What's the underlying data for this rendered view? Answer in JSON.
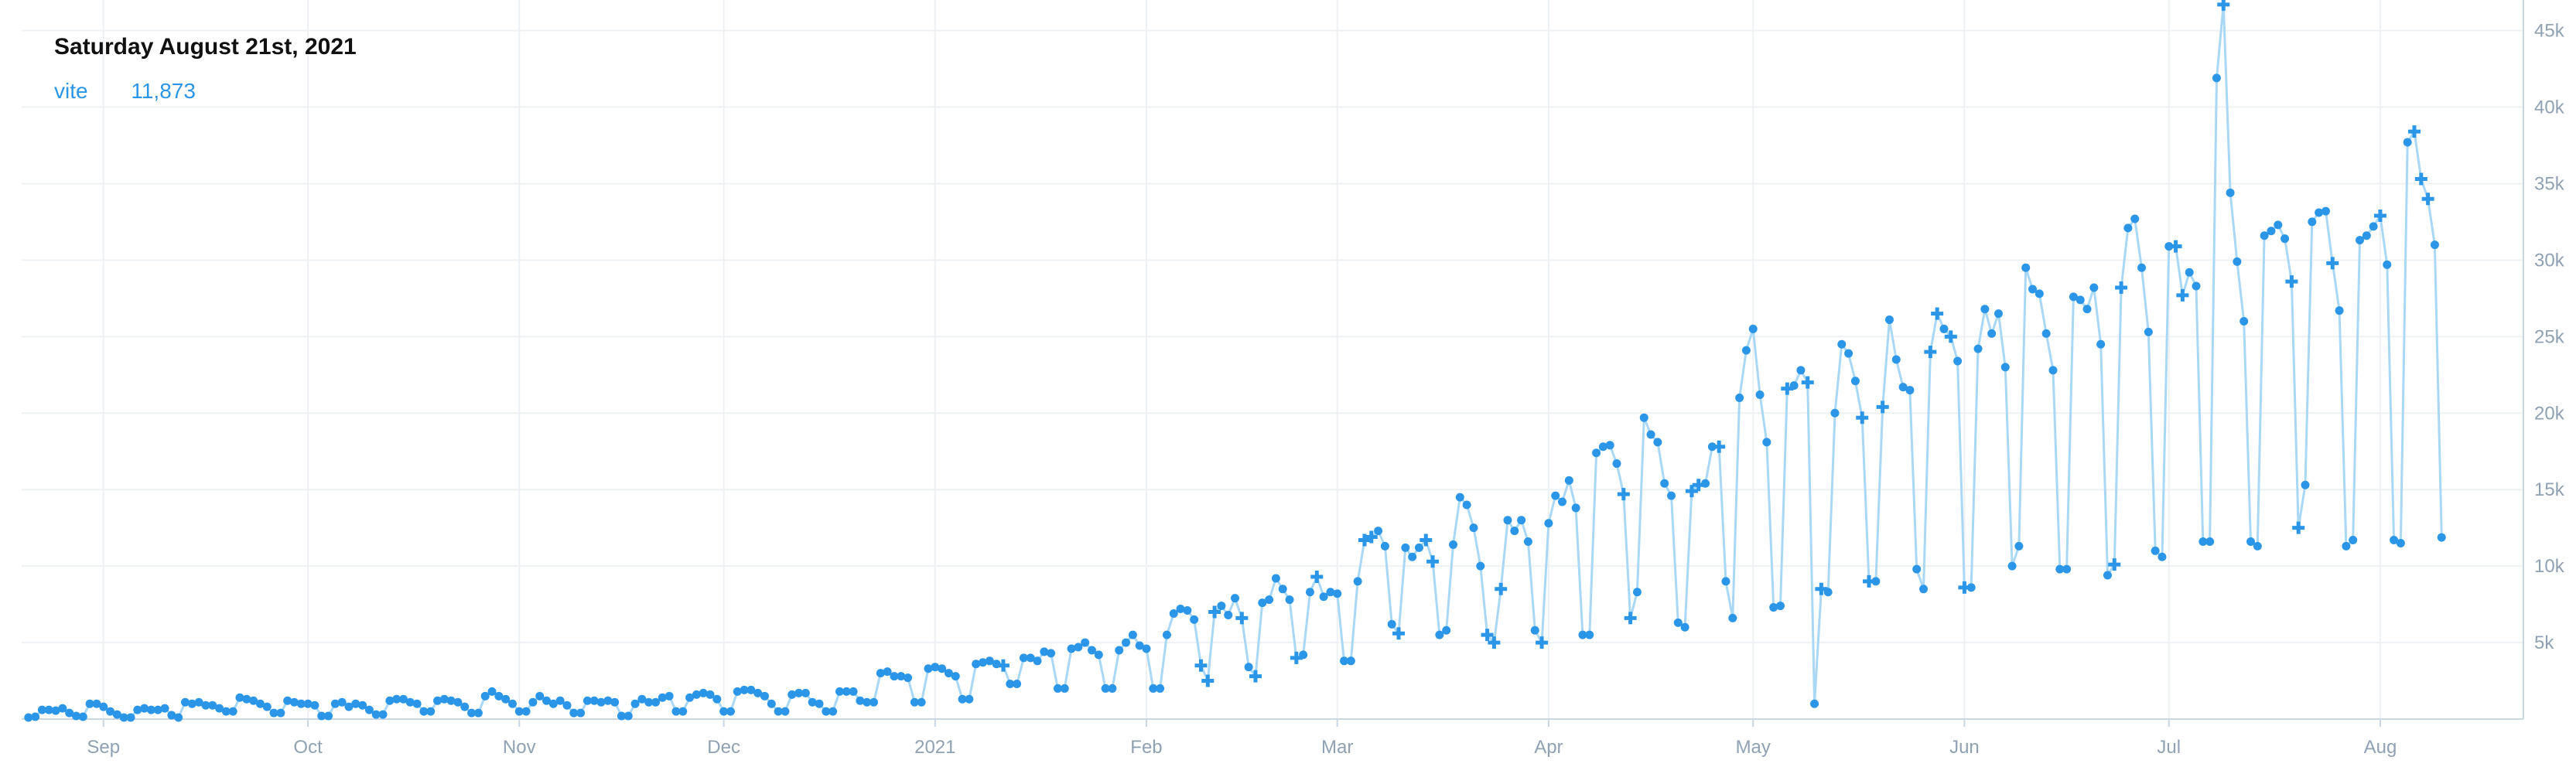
{
  "tooltip": {
    "date": "Saturday August 21st, 2021",
    "series": "vite",
    "value": "11,873"
  },
  "colors": {
    "line": "#a9d8f7",
    "point": "#2b96e8",
    "grid": "#eef1f4",
    "axis": "#c9d6e3",
    "tick_text": "#8fa1b3"
  },
  "chart_data": {
    "type": "line",
    "title": "",
    "xlabel": "",
    "ylabel": "",
    "x_start": "2020-08-21",
    "x_end": "2021-08-21",
    "xlim": [
      "2020-08-20",
      "2021-08-22"
    ],
    "ylim": [
      0,
      47000
    ],
    "grid": true,
    "y_axis_side": "right",
    "x_ticks": [
      {
        "label": "Sep",
        "date": "2020-09-01"
      },
      {
        "label": "Oct",
        "date": "2020-10-01"
      },
      {
        "label": "Nov",
        "date": "2020-11-01"
      },
      {
        "label": "Dec",
        "date": "2020-12-01"
      },
      {
        "label": "2021",
        "date": "2021-01-01"
      },
      {
        "label": "Feb",
        "date": "2021-02-01"
      },
      {
        "label": "Mar",
        "date": "2021-03-01"
      },
      {
        "label": "Apr",
        "date": "2021-04-01"
      },
      {
        "label": "May",
        "date": "2021-05-01"
      },
      {
        "label": "Jun",
        "date": "2021-06-01"
      },
      {
        "label": "Jul",
        "date": "2021-07-01"
      },
      {
        "label": "Aug",
        "date": "2021-08-01"
      }
    ],
    "y_ticks": [
      {
        "label": "5k",
        "value": 5000
      },
      {
        "label": "10k",
        "value": 10000
      },
      {
        "label": "15k",
        "value": 15000
      },
      {
        "label": "20k",
        "value": 20000
      },
      {
        "label": "25k",
        "value": 25000
      },
      {
        "label": "30k",
        "value": 30000
      },
      {
        "label": "35k",
        "value": 35000
      },
      {
        "label": "40k",
        "value": 40000
      },
      {
        "label": "45k",
        "value": 45000
      }
    ],
    "series": [
      {
        "name": "vite",
        "values": [
          100,
          150,
          600,
          600,
          550,
          700,
          400,
          200,
          150,
          1000,
          1000,
          800,
          500,
          300,
          100,
          100,
          600,
          700,
          600,
          600,
          700,
          250,
          100,
          1100,
          1000,
          1100,
          900,
          900,
          700,
          500,
          500,
          1400,
          1300,
          1200,
          1000,
          800,
          400,
          400,
          1200,
          1100,
          1000,
          1000,
          900,
          200,
          200,
          1000,
          1100,
          800,
          1000,
          900,
          600,
          300,
          300,
          1200,
          1300,
          1300,
          1100,
          1000,
          500,
          500,
          1200,
          1300,
          1200,
          1100,
          800,
          400,
          400,
          1500,
          1800,
          1500,
          1300,
          1000,
          500,
          500,
          1100,
          1500,
          1200,
          1000,
          1200,
          900,
          400,
          400,
          1200,
          1200,
          1100,
          1200,
          1100,
          200,
          200,
          1000,
          1300,
          1100,
          1100,
          1400,
          1500,
          500,
          500,
          1400,
          1600,
          1700,
          1600,
          1300,
          500,
          500,
          1800,
          1900,
          1900,
          1700,
          1500,
          1000,
          500,
          500,
          1600,
          1700,
          1700,
          1100,
          1000,
          500,
          500,
          1800,
          1800,
          1800,
          1200,
          1100,
          1100,
          3000,
          3100,
          2800,
          2800,
          2700,
          1100,
          1100,
          3300,
          3400,
          3300,
          3000,
          2800,
          1300,
          1300,
          3600,
          3700,
          3800,
          3600,
          3500,
          2300,
          2300,
          4000,
          4000,
          3800,
          4400,
          4300,
          2000,
          2000,
          4600,
          4700,
          5000,
          4500,
          4200,
          2000,
          2000,
          4500,
          5000,
          5500,
          4800,
          4600,
          2000,
          2000,
          5500,
          6900,
          7200,
          7100,
          6500,
          3500,
          2500,
          7000,
          7400,
          6800,
          7900,
          6600,
          3400,
          2800,
          7600,
          7800,
          9200,
          8500,
          7800,
          4000,
          4200,
          8300,
          9300,
          8000,
          8300,
          8200,
          3800,
          3800,
          9000,
          11700,
          11900,
          12300,
          11300,
          6200,
          5600,
          11200,
          10600,
          11200,
          11700,
          10300,
          5500,
          5800,
          11400,
          14500,
          14000,
          12500,
          10000,
          5500,
          5000,
          8500,
          13000,
          12300,
          13000,
          11600,
          5800,
          5000,
          12800,
          14600,
          14200,
          15600,
          13800,
          5500,
          5500,
          17400,
          17800,
          17900,
          16700,
          14700,
          6600,
          8300,
          19700,
          18600,
          18100,
          15400,
          14600,
          6300,
          6000,
          14900,
          15300,
          15400,
          17800,
          17800,
          9000,
          6600,
          21000,
          24100,
          25500,
          21200,
          18100,
          7300,
          7400,
          21600,
          21800,
          22800,
          22000,
          1000,
          8500,
          8300,
          20000,
          24500,
          23900,
          22100,
          19700,
          9000,
          9000,
          20400,
          26100,
          23500,
          21700,
          21500,
          9800,
          8500,
          24000,
          26500,
          25500,
          25000,
          23400,
          8600,
          8600,
          24200,
          26800,
          25200,
          26500,
          23000,
          10000,
          11300,
          29500,
          28100,
          27800,
          25200,
          22800,
          9800,
          9800,
          27600,
          27400,
          26800,
          28200,
          24500,
          9400,
          10100,
          28200,
          32100,
          32700,
          29500,
          25300,
          11000,
          10600,
          30900,
          30900,
          27700,
          29200,
          28300,
          11600,
          11600,
          41900,
          46700,
          34400,
          29900,
          26000,
          11600,
          11300,
          31600,
          31900,
          32300,
          31400,
          28600,
          12500,
          15300,
          32500,
          33100,
          33200,
          29800,
          26700,
          11300,
          11700,
          31300,
          31600,
          32200,
          32900,
          29700,
          11700,
          11500,
          37700,
          38400,
          35300,
          34000,
          31000,
          11873
        ],
        "highlighted_indices": [
          143,
          172,
          173,
          174,
          178,
          180,
          186,
          189,
          196,
          197,
          201,
          205,
          206,
          214,
          215,
          216,
          222,
          234,
          235,
          244,
          245,
          248,
          258,
          261,
          263,
          269,
          270,
          272,
          279,
          280,
          282,
          284,
          306,
          307,
          315,
          316,
          322,
          332,
          333,
          338,
          345,
          350,
          351,
          352,
          357,
          359,
          364,
          377,
          378
        ]
      }
    ]
  }
}
